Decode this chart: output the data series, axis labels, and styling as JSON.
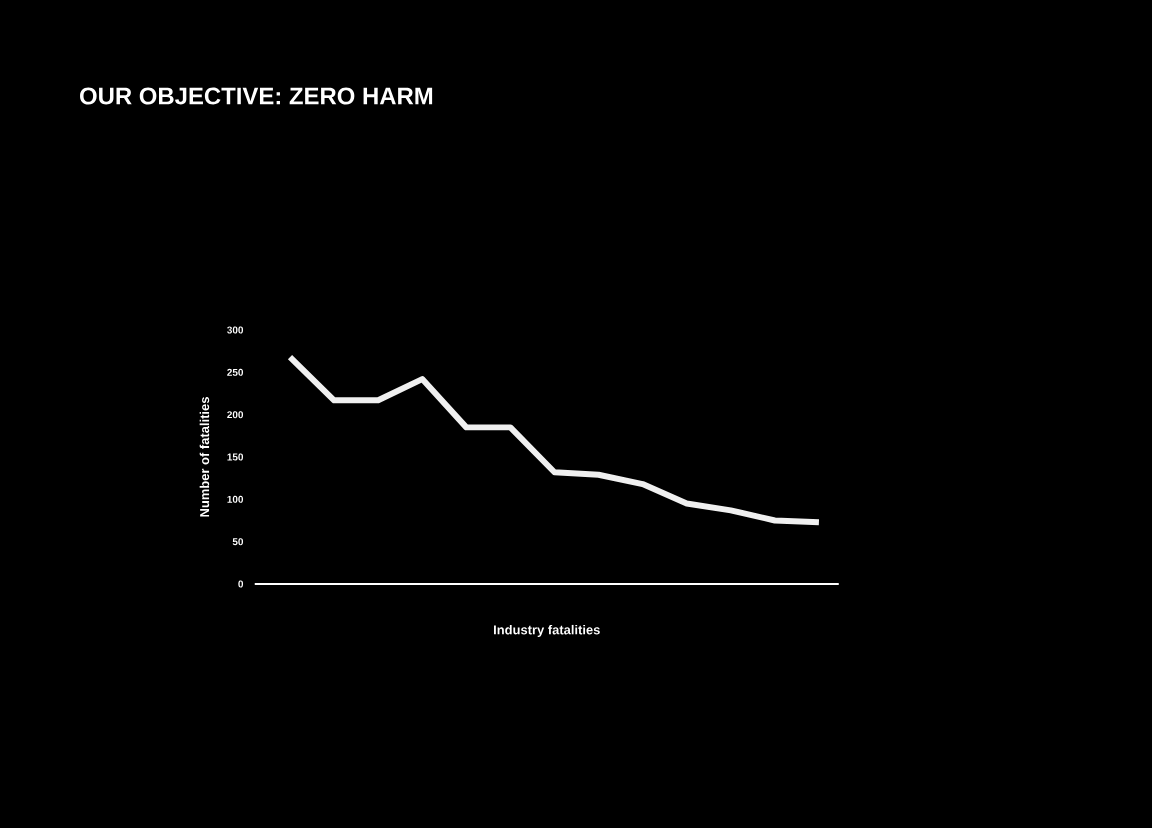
{
  "chart_data": {
    "type": "line",
    "title": "OUR OBJECTIVE:  ZERO HARM",
    "xlabel": "Industry fatalities",
    "ylabel": "Number of fatalities",
    "categories": [
      null,
      null,
      null,
      null,
      null,
      null,
      null,
      null,
      null,
      null,
      null,
      null,
      null
    ],
    "values": [
      268,
      217,
      217,
      242,
      185,
      185,
      132,
      129,
      118,
      95,
      87,
      75,
      73
    ],
    "color": "#f0f0f0",
    "ylim": [
      0,
      300
    ],
    "yticks": [
      0,
      50,
      100,
      150,
      200,
      250,
      300
    ]
  }
}
